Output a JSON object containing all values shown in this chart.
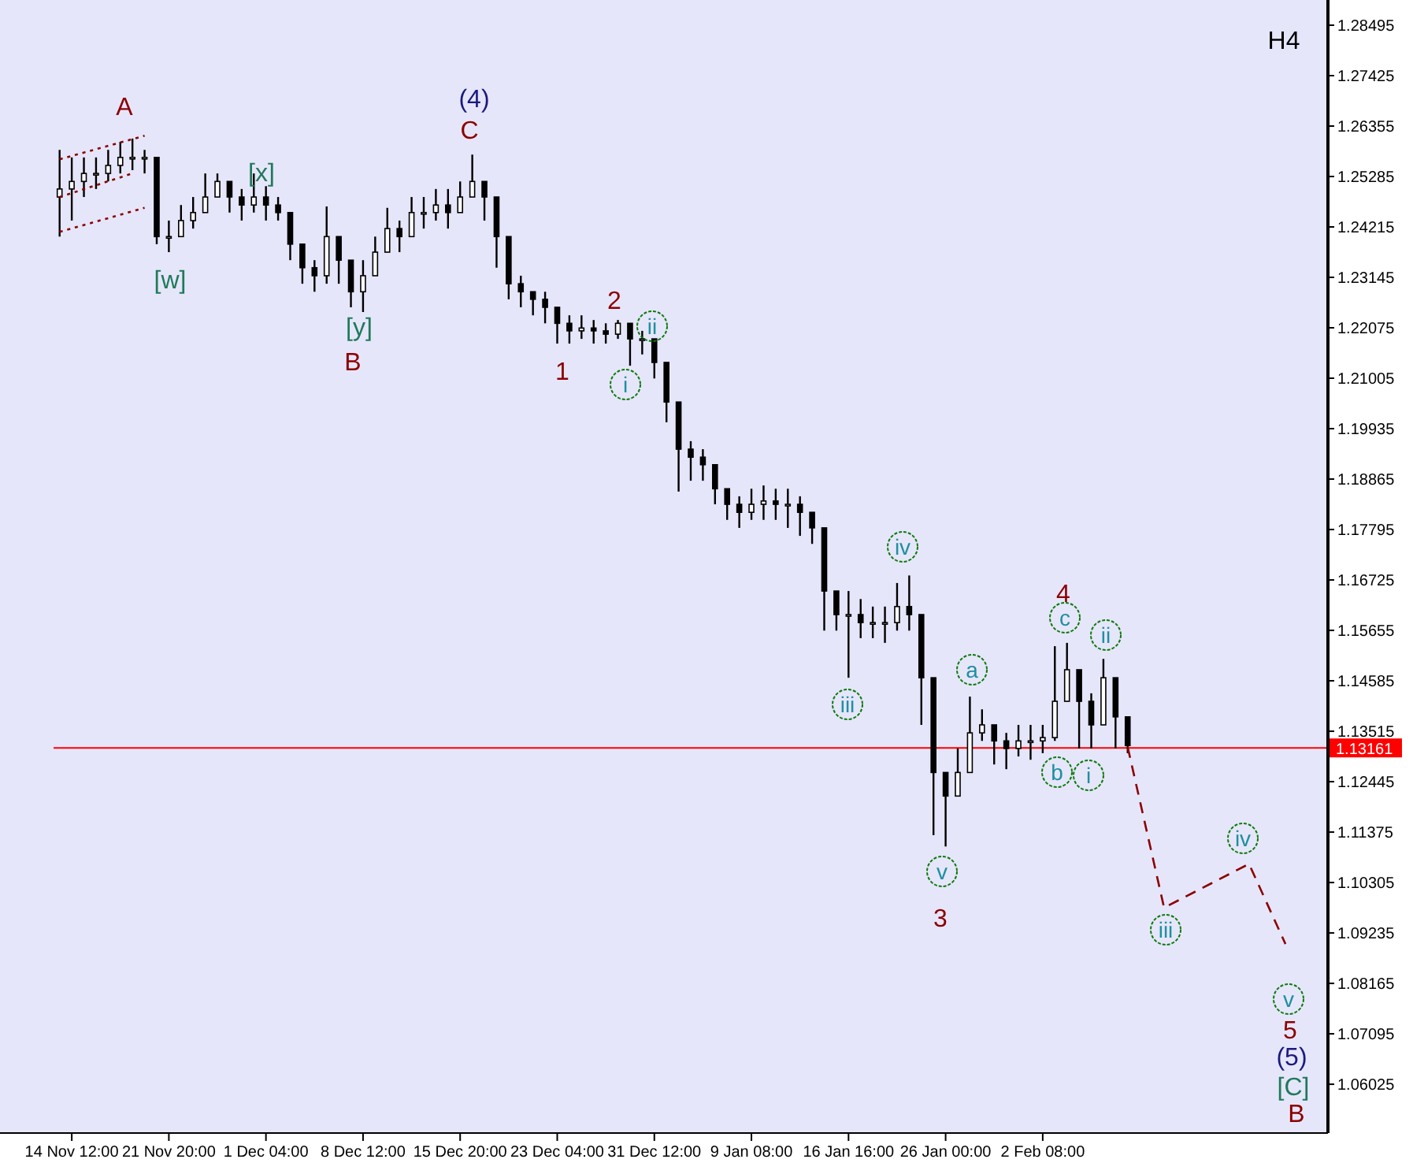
{
  "chart_data": {
    "type": "candlestick",
    "color": "#000000",
    "categories": [
      null,
      "14 Nov 12:00",
      null,
      null,
      null,
      null,
      null,
      null,
      null,
      "21 Nov 20:00",
      null,
      null,
      null,
      null,
      null,
      null,
      null,
      "1 Dec 04:00",
      null,
      null,
      null,
      null,
      null,
      null,
      null,
      "8 Dec 12:00",
      null,
      null,
      null,
      null,
      null,
      null,
      null,
      "15 Dec 20:00",
      null,
      null,
      null,
      null,
      null,
      null,
      null,
      "23 Dec 04:00",
      null,
      null,
      null,
      null,
      null,
      null,
      null,
      "31 Dec 12:00",
      null,
      null,
      null,
      null,
      null,
      null,
      null,
      "9 Jan 08:00",
      null,
      null,
      null,
      null,
      null,
      null,
      null,
      "16 Jan 16:00",
      null,
      null,
      null,
      null,
      null,
      null,
      null,
      "26 Jan 00:00",
      null,
      null,
      null,
      null,
      null,
      null,
      null,
      "2 Feb 08:00",
      null,
      null,
      null,
      null,
      null,
      null,
      null,
      null,
      null,
      null,
      null,
      null,
      null,
      null,
      null,
      null,
      null,
      null,
      null,
      null,
      null,
      null,
      null
    ],
    "ohlc": [
      [
        1.2485,
        1.2585,
        1.2401,
        1.2502
      ],
      [
        1.2502,
        1.2569,
        1.2435,
        1.2518
      ],
      [
        1.2518,
        1.2569,
        1.2485,
        1.2535
      ],
      [
        1.2535,
        1.2569,
        1.2502,
        1.2535
      ],
      [
        1.2535,
        1.2585,
        1.2518,
        1.2552
      ],
      [
        1.2552,
        1.2602,
        1.2535,
        1.2569
      ],
      [
        1.2569,
        1.2609,
        1.2542,
        1.2569
      ],
      [
        1.2569,
        1.2585,
        1.2535,
        1.2569
      ],
      [
        1.2569,
        1.2569,
        1.2385,
        1.2401
      ],
      [
        1.2401,
        1.2435,
        1.2368,
        1.2401
      ],
      [
        1.2401,
        1.2468,
        1.2401,
        1.2435
      ],
      [
        1.2435,
        1.2485,
        1.2418,
        1.2452
      ],
      [
        1.2452,
        1.2535,
        1.2452,
        1.2485
      ],
      [
        1.2485,
        1.2535,
        1.2485,
        1.2518
      ],
      [
        1.2518,
        1.2518,
        1.2452,
        1.2485
      ],
      [
        1.2485,
        1.2502,
        1.2435,
        1.2468
      ],
      [
        1.2468,
        1.2535,
        1.2452,
        1.2485
      ],
      [
        1.2485,
        1.2508,
        1.2435,
        1.2468
      ],
      [
        1.2468,
        1.2485,
        1.2435,
        1.2452
      ],
      [
        1.2452,
        1.2452,
        1.2351,
        1.2385
      ],
      [
        1.2385,
        1.2385,
        1.2301,
        1.2335
      ],
      [
        1.2335,
        1.2351,
        1.2284,
        1.2318
      ],
      [
        1.2318,
        1.2465,
        1.2301,
        1.2401
      ],
      [
        1.2401,
        1.2401,
        1.2301,
        1.2351
      ],
      [
        1.2351,
        1.2351,
        1.2251,
        1.2284
      ],
      [
        1.2284,
        1.2351,
        1.2241,
        1.2318
      ],
      [
        1.2318,
        1.2401,
        1.2318,
        1.2368
      ],
      [
        1.2368,
        1.2462,
        1.2368,
        1.2418
      ],
      [
        1.2418,
        1.2435,
        1.2368,
        1.2401
      ],
      [
        1.2401,
        1.2485,
        1.2401,
        1.2452
      ],
      [
        1.2452,
        1.2485,
        1.2418,
        1.2452
      ],
      [
        1.2452,
        1.2502,
        1.2435,
        1.2468
      ],
      [
        1.2468,
        1.2502,
        1.2418,
        1.2452
      ],
      [
        1.2452,
        1.2518,
        1.2452,
        1.2485
      ],
      [
        1.2485,
        1.2575,
        1.2485,
        1.2518
      ],
      [
        1.2518,
        1.2518,
        1.2435,
        1.2485
      ],
      [
        1.2485,
        1.2485,
        1.2335,
        1.2401
      ],
      [
        1.2401,
        1.2401,
        1.2268,
        1.2301
      ],
      [
        1.2301,
        1.2318,
        1.2251,
        1.2284
      ],
      [
        1.2284,
        1.2284,
        1.2234,
        1.2268
      ],
      [
        1.2268,
        1.2284,
        1.2217,
        1.2251
      ],
      [
        1.2251,
        1.2251,
        1.2174,
        1.2217
      ],
      [
        1.2217,
        1.2234,
        1.2174,
        1.2201
      ],
      [
        1.2201,
        1.2234,
        1.2184,
        1.2207
      ],
      [
        1.2207,
        1.2224,
        1.2174,
        1.2201
      ],
      [
        1.2201,
        1.2217,
        1.2174,
        1.2194
      ],
      [
        1.2194,
        1.2224,
        1.2184,
        1.2217
      ],
      [
        1.2217,
        1.2217,
        1.2127,
        1.2184
      ],
      [
        1.2184,
        1.2201,
        1.2151,
        1.2184
      ],
      [
        1.2184,
        1.2184,
        1.21,
        1.2134
      ],
      [
        1.2134,
        1.2134,
        1.2007,
        1.205
      ],
      [
        1.205,
        1.205,
        1.186,
        1.195
      ],
      [
        1.195,
        1.1967,
        1.1883,
        1.1933
      ],
      [
        1.1933,
        1.195,
        1.1883,
        1.1917
      ],
      [
        1.1917,
        1.1917,
        1.1833,
        1.1866
      ],
      [
        1.1866,
        1.1866,
        1.18,
        1.1833
      ],
      [
        1.1833,
        1.185,
        1.1783,
        1.1816
      ],
      [
        1.1816,
        1.1866,
        1.18,
        1.1833
      ],
      [
        1.1833,
        1.1873,
        1.18,
        1.184
      ],
      [
        1.184,
        1.1866,
        1.18,
        1.1833
      ],
      [
        1.1833,
        1.1866,
        1.1783,
        1.1833
      ],
      [
        1.1833,
        1.185,
        1.1766,
        1.1816
      ],
      [
        1.1816,
        1.1816,
        1.1749,
        1.1783
      ],
      [
        1.1783,
        1.1783,
        1.1565,
        1.1649
      ],
      [
        1.1649,
        1.1649,
        1.1565,
        1.1599
      ],
      [
        1.1599,
        1.1649,
        1.1465,
        1.1599
      ],
      [
        1.1599,
        1.1632,
        1.1549,
        1.1582
      ],
      [
        1.1582,
        1.1616,
        1.1549,
        1.1582
      ],
      [
        1.1582,
        1.1616,
        1.1539,
        1.1582
      ],
      [
        1.1582,
        1.1666,
        1.1565,
        1.1616
      ],
      [
        1.1616,
        1.1682,
        1.1565,
        1.1599
      ],
      [
        1.1599,
        1.1599,
        1.1365,
        1.1465
      ],
      [
        1.1465,
        1.1465,
        1.1131,
        1.1264
      ],
      [
        1.1264,
        1.1264,
        1.1107,
        1.1214
      ],
      [
        1.1214,
        1.1315,
        1.1214,
        1.1264
      ],
      [
        1.1264,
        1.1425,
        1.1264,
        1.1348
      ],
      [
        1.1348,
        1.1398,
        1.1331,
        1.1365
      ],
      [
        1.1365,
        1.1365,
        1.1281,
        1.1331
      ],
      [
        1.1331,
        1.1348,
        1.1271,
        1.1315
      ],
      [
        1.1315,
        1.1365,
        1.1298,
        1.1331
      ],
      [
        1.1331,
        1.1365,
        1.1291,
        1.1331
      ],
      [
        1.1331,
        1.1365,
        1.1305,
        1.1338
      ],
      [
        1.1338,
        1.1532,
        1.1331,
        1.1415
      ],
      [
        1.1415,
        1.1539,
        1.1415,
        1.1482
      ],
      [
        1.1482,
        1.1482,
        1.1315,
        1.1415
      ],
      [
        1.1415,
        1.1432,
        1.1315,
        1.1365
      ],
      [
        1.1365,
        1.1505,
        1.1365,
        1.1465
      ],
      [
        1.1465,
        1.1465,
        1.1315,
        1.1382
      ],
      [
        1.1382,
        1.1382,
        1.1305,
        1.1321
      ],
      null,
      null,
      null,
      null,
      null,
      null,
      null,
      null,
      null,
      null,
      null,
      null,
      null,
      null,
      null,
      null
    ],
    "series": [
      {
        "type": "line",
        "color": "#8b0000",
        "line_style": "dashed",
        "values": [
          null,
          null,
          null,
          null,
          null,
          null,
          null,
          null,
          null,
          null,
          null,
          null,
          null,
          null,
          null,
          null,
          null,
          null,
          null,
          null,
          null,
          null,
          null,
          null,
          null,
          null,
          null,
          null,
          null,
          null,
          null,
          null,
          null,
          null,
          null,
          null,
          null,
          null,
          null,
          null,
          null,
          null,
          null,
          null,
          null,
          null,
          null,
          null,
          null,
          null,
          null,
          null,
          null,
          null,
          null,
          null,
          null,
          null,
          null,
          null,
          null,
          null,
          null,
          null,
          null,
          null,
          null,
          null,
          null,
          null,
          null,
          null,
          null,
          null,
          null,
          null,
          null,
          null,
          null,
          null,
          null,
          null,
          null,
          null,
          null,
          null,
          null,
          null,
          1.1318,
          null,
          null,
          1.0977,
          null,
          null,
          null,
          null,
          null,
          null,
          1.107,
          null,
          null,
          1.09,
          null,
          null,
          null
        ]
      },
      {
        "type": "line",
        "color": "#8b0000",
        "line_style": "dotted",
        "values": [
          1.2565,
          null,
          null,
          null,
          null,
          null,
          null,
          1.2615,
          null,
          null,
          null,
          null,
          null,
          null,
          null,
          null,
          null,
          null,
          null,
          null,
          null,
          null,
          null,
          null,
          null,
          null,
          null,
          null,
          null,
          null,
          null,
          null,
          null,
          null,
          null,
          null,
          null,
          null,
          null,
          null,
          null,
          null,
          null,
          null,
          null,
          null,
          null,
          null,
          null,
          null,
          null,
          null,
          null,
          null,
          null,
          null,
          null,
          null,
          null,
          null,
          null,
          null,
          null,
          null,
          null,
          null,
          null,
          null,
          null,
          null,
          null,
          null,
          null,
          null,
          null,
          null,
          null,
          null,
          null,
          null,
          null,
          null,
          null,
          null,
          null,
          null,
          null,
          null,
          null,
          null,
          null,
          null,
          null,
          null,
          null,
          null,
          null,
          null,
          null,
          null,
          null,
          null,
          null,
          null,
          null
        ]
      },
      {
        "type": "line",
        "color": "#8b0000",
        "line_style": "dotted",
        "values": [
          1.2485,
          null,
          null,
          null,
          null,
          null,
          1.2535,
          null,
          null,
          null,
          null,
          null,
          null,
          null,
          null,
          null,
          null,
          null,
          null,
          null,
          null,
          null,
          null,
          null,
          null,
          null,
          null,
          null,
          null,
          null,
          null,
          null,
          null,
          null,
          null,
          null,
          null,
          null,
          null,
          null,
          null,
          null,
          null,
          null,
          null,
          null,
          null,
          null,
          null,
          null,
          null,
          null,
          null,
          null,
          null,
          null,
          null,
          null,
          null,
          null,
          null,
          null,
          null,
          null,
          null,
          null,
          null,
          null,
          null,
          null,
          null,
          null,
          null,
          null,
          null,
          null,
          null,
          null,
          null,
          null,
          null,
          null,
          null,
          null,
          null,
          null,
          null,
          null,
          null,
          null,
          null,
          null,
          null,
          null,
          null,
          null,
          null,
          null,
          null,
          null,
          null,
          null,
          null,
          null,
          null
        ]
      },
      {
        "type": "line",
        "color": "#8b0000",
        "line_style": "dotted",
        "values": [
          1.2411,
          null,
          null,
          null,
          null,
          null,
          null,
          1.2462,
          null,
          null,
          null,
          null,
          null,
          null,
          null,
          null,
          null,
          null,
          null,
          null,
          null,
          null,
          null,
          null,
          null,
          null,
          null,
          null,
          null,
          null,
          null,
          null,
          null,
          null,
          null,
          null,
          null,
          null,
          null,
          null,
          null,
          null,
          null,
          null,
          null,
          null,
          null,
          null,
          null,
          null,
          null,
          null,
          null,
          null,
          null,
          null,
          null,
          null,
          null,
          null,
          null,
          null,
          null,
          null,
          null,
          null,
          null,
          null,
          null,
          null,
          null,
          null,
          null,
          null,
          null,
          null,
          null,
          null,
          null,
          null,
          null,
          null,
          null,
          null,
          null,
          null,
          null,
          null,
          null,
          null,
          null,
          null,
          null,
          null,
          null,
          null,
          null,
          null,
          null,
          null,
          null,
          null,
          null,
          null,
          null
        ]
      }
    ],
    "ylim": [
      1.0499,
      1.2903
    ],
    "yticks": [
      1.28495,
      1.27425,
      1.26355,
      1.25285,
      1.24215,
      1.23145,
      1.22075,
      1.21005,
      1.19935,
      1.18865,
      1.17795,
      1.16725,
      1.15655,
      1.14585,
      1.13515,
      1.12445,
      1.11375,
      1.10305,
      1.09235,
      1.08165,
      1.07095,
      1.06025
    ],
    "ref_lines": [
      {
        "axis": "y",
        "value": 1.13161,
        "label": "1.13161",
        "color": "#ff0000"
      }
    ],
    "annotations": [
      "H4",
      "A",
      "[w]",
      "[x]",
      "[y]",
      "B",
      "(4)",
      "C",
      "1",
      "2",
      "i",
      "ii",
      "iii",
      "iv",
      "v",
      "3",
      "a",
      "b",
      "c",
      "4",
      "i",
      "ii",
      "iii",
      "iv",
      "v",
      "5",
      "(5)",
      "[C]",
      "B"
    ]
  }
}
